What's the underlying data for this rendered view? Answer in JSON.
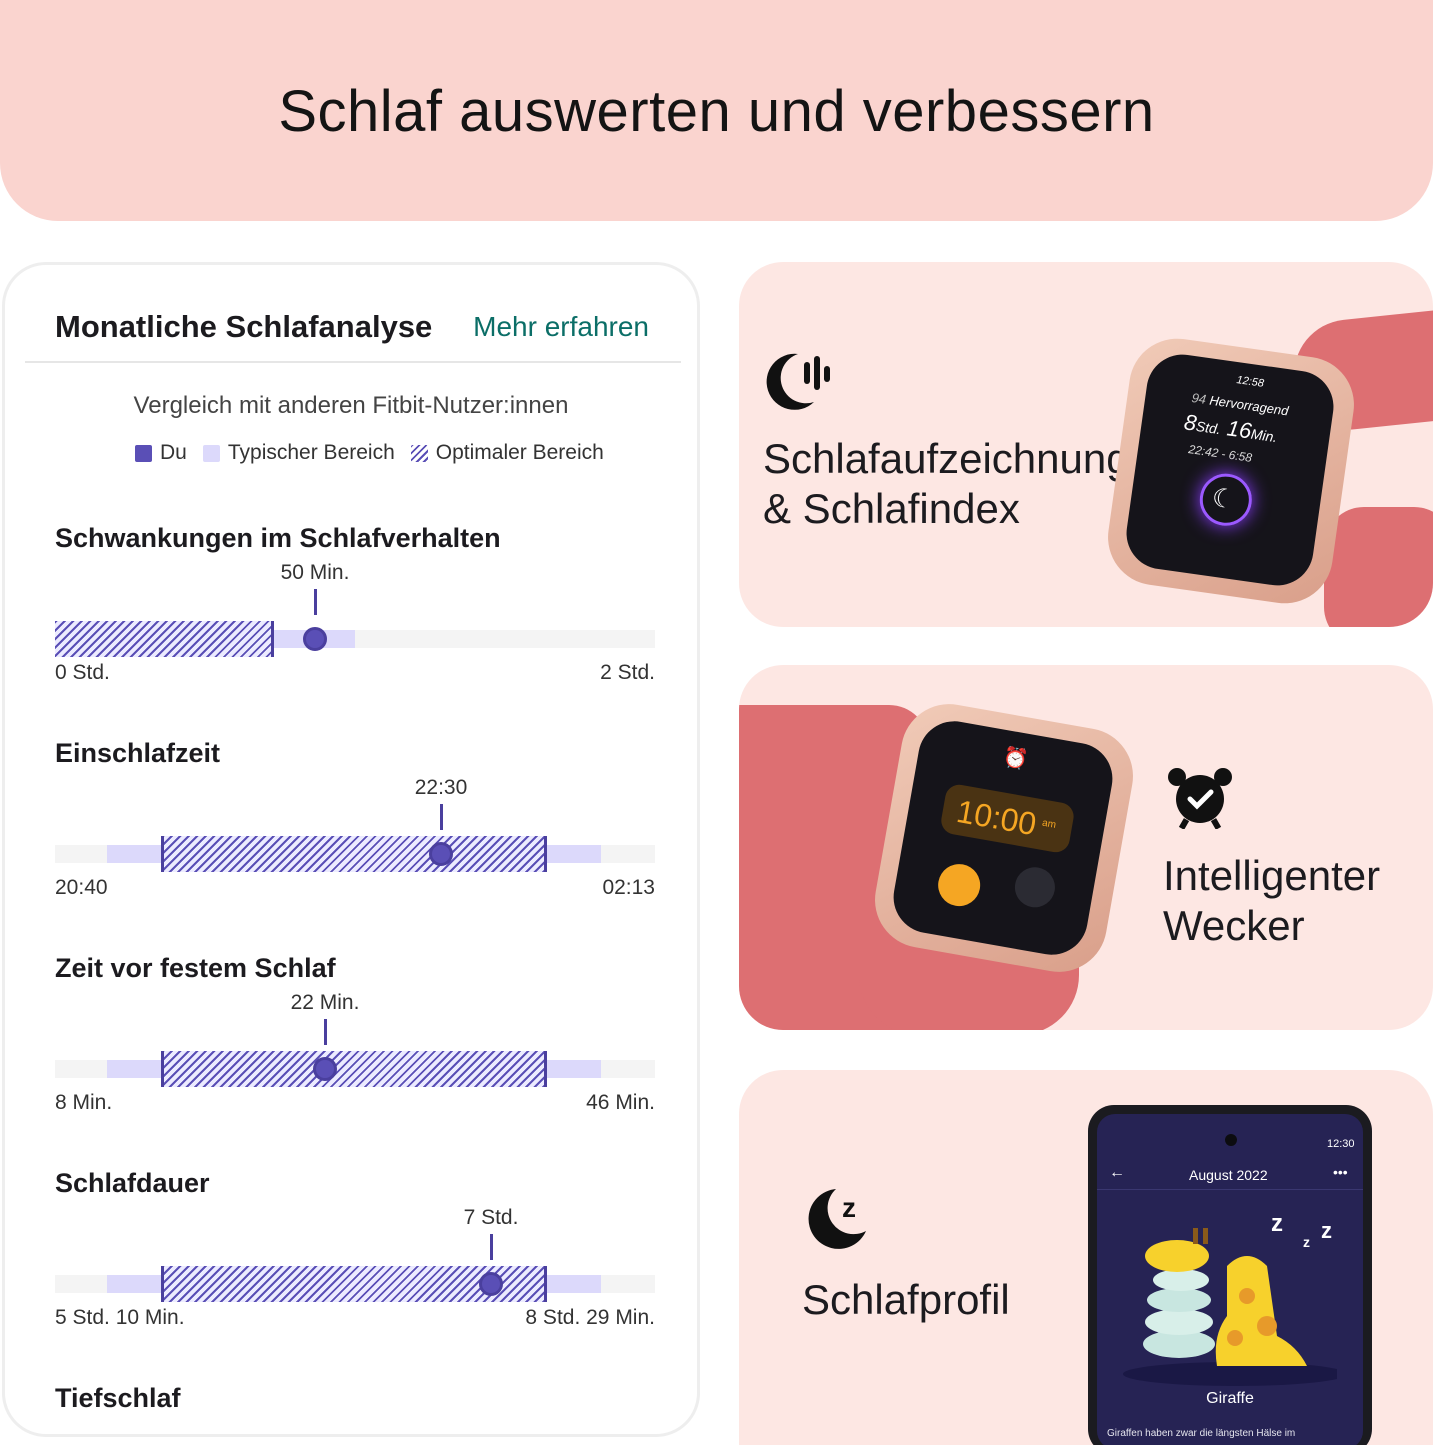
{
  "banner": {
    "title": "Schlaf auswerten und verbessern"
  },
  "analysis": {
    "title": "Monatliche Schlafanalyse",
    "link": "Mehr erfahren",
    "subtitle": "Vergleich mit anderen Fitbit-Nutzer:innen",
    "legend": {
      "you": "Du",
      "typical": "Typischer Bereich",
      "optimal": "Optimaler Bereich"
    },
    "metrics": [
      {
        "title": "Schwankungen im Schlafverhalten",
        "value": "50 Min.",
        "min": "0 Std.",
        "max": "2 Std."
      },
      {
        "title": "Einschlafzeit",
        "value": "22:30",
        "min": "20:40",
        "max": "02:13"
      },
      {
        "title": "Zeit vor festem Schlaf",
        "value": "22 Min.",
        "min": "8 Min.",
        "max": "46 Min."
      },
      {
        "title": "Schlafdauer",
        "value": "7 Std.",
        "min": "5 Std. 10 Min.",
        "max": "8 Std. 29 Min."
      },
      {
        "title": "Tiefschlaf"
      }
    ]
  },
  "features": {
    "tracking": {
      "line1": "Schlafaufzeichnung",
      "line2": "& Schlafindex"
    },
    "alarm": {
      "line1": "Intelligenter",
      "line2": "Wecker"
    },
    "profile": {
      "label": "Schlafprofil"
    }
  },
  "watch1": {
    "time": "12:58",
    "score_num": "94",
    "score_label": "Hervorragend",
    "hours": "8",
    "hours_unit": "Std.",
    "mins": "16",
    "mins_unit": "Min.",
    "range": "22:42 - 6:58"
  },
  "watch2": {
    "time": "10:00",
    "ampm": "am"
  },
  "phone": {
    "status_time": "12:30",
    "month": "August 2022",
    "animal": "Giraffe",
    "desc": "Giraffen haben zwar die längsten Hälse im"
  },
  "colors": {
    "banner": "#fad4cf",
    "feature_bg": "#fde7e3",
    "accent": "#5a4fb6",
    "typical": "#dcd9fb",
    "link": "#0b6e67",
    "strap": "#dd6f72"
  }
}
